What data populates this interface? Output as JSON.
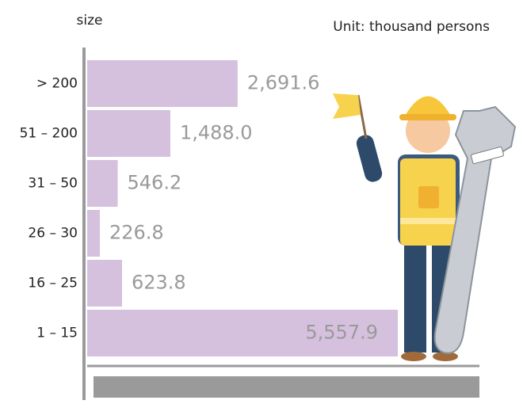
{
  "chart_data": {
    "type": "bar",
    "orientation": "horizontal",
    "y_label": "size",
    "unit": "Unit: thousand persons",
    "categories": [
      "> 200",
      "51 – 200",
      "31 – 50",
      "26 – 30",
      "16 – 25",
      "1 – 15"
    ],
    "values": [
      2691.6,
      1488.0,
      546.2,
      226.8,
      623.8,
      5557.9
    ],
    "value_labels": [
      "2,691.6",
      "1,488.0",
      "546.2",
      "226.8",
      "623.8",
      "5,557.9"
    ],
    "color": "#d5c0de"
  }
}
